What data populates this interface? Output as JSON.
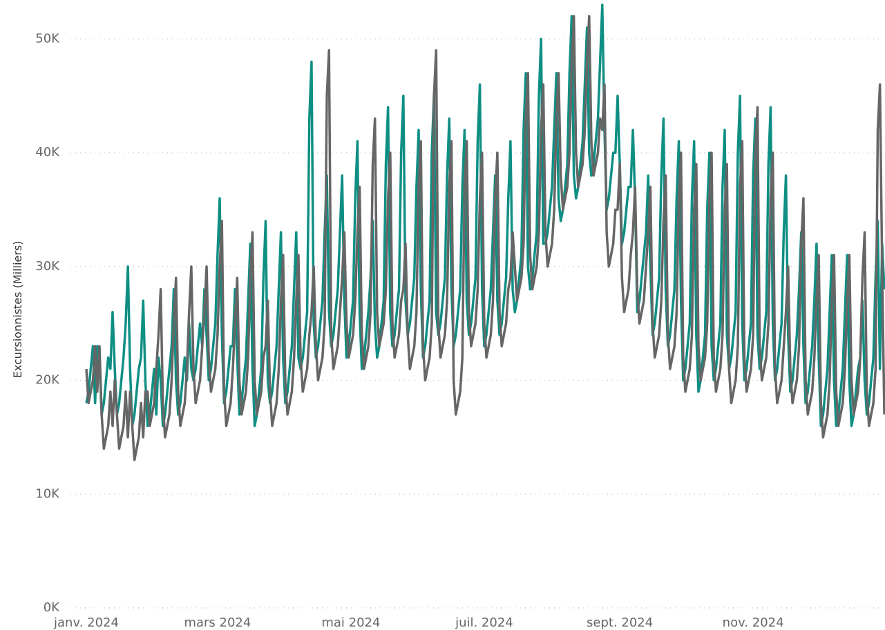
{
  "chart_data": {
    "type": "line",
    "y_label": "Excursionnistes (Milliers)",
    "xlim": [
      0,
      365
    ],
    "xticks": [
      {
        "value": 0,
        "label": "janv. 2024"
      },
      {
        "value": 60,
        "label": "mars 2024"
      },
      {
        "value": 121,
        "label": "mai 2024"
      },
      {
        "value": 182,
        "label": "juil. 2024"
      },
      {
        "value": 244,
        "label": "sept. 2024"
      },
      {
        "value": 305,
        "label": "nov. 2024"
      }
    ],
    "ylim": [
      0,
      53
    ],
    "yticks": [
      {
        "value": 0,
        "label": "0K"
      },
      {
        "value": 10,
        "label": "10K"
      },
      {
        "value": 20,
        "label": "20K"
      },
      {
        "value": 30,
        "label": "30K"
      },
      {
        "value": 40,
        "label": "40K"
      },
      {
        "value": 50,
        "label": "50K"
      }
    ],
    "grid": true,
    "series": [
      {
        "color": "#0f8f84",
        "values": [
          18,
          19,
          21,
          23,
          18,
          23,
          22,
          17,
          18,
          20,
          22,
          21,
          26,
          21,
          17,
          18,
          20,
          22,
          25,
          30,
          21,
          16,
          17,
          19,
          21,
          22,
          27,
          20,
          16,
          17,
          19,
          21,
          17,
          22,
          20,
          16,
          17,
          19,
          21,
          23,
          28,
          20,
          17,
          18,
          20,
          22,
          20,
          25,
          21,
          20,
          21,
          23,
          25,
          23,
          28,
          24,
          20,
          21,
          23,
          25,
          31,
          36,
          24,
          18,
          19,
          21,
          23,
          23,
          28,
          22,
          17,
          18,
          20,
          22,
          27,
          32,
          21,
          16,
          17,
          19,
          21,
          29,
          34,
          20,
          18,
          19,
          21,
          23,
          28,
          33,
          22,
          18,
          19,
          21,
          23,
          28,
          33,
          22,
          21,
          22,
          24,
          26,
          43,
          48,
          25,
          22,
          23,
          25,
          27,
          33,
          38,
          26,
          23,
          24,
          26,
          28,
          33,
          38,
          27,
          22,
          23,
          25,
          27,
          36,
          41,
          26,
          21,
          22,
          24,
          26,
          29,
          34,
          25,
          22,
          23,
          25,
          27,
          39,
          44,
          26,
          23,
          24,
          26,
          28,
          40,
          45,
          27,
          24,
          25,
          27,
          29,
          37,
          42,
          28,
          22,
          23,
          25,
          27,
          40,
          45,
          26,
          24,
          25,
          27,
          29,
          38,
          43,
          28,
          23,
          24,
          26,
          28,
          37,
          42,
          27,
          24,
          25,
          27,
          29,
          41,
          46,
          28,
          23,
          24,
          26,
          28,
          33,
          38,
          27,
          24,
          25,
          27,
          29,
          36,
          41,
          28,
          26,
          27,
          29,
          31,
          42,
          47,
          30,
          28,
          29,
          31,
          33,
          45,
          50,
          32,
          32,
          33,
          35,
          37,
          42,
          47,
          36,
          34,
          35,
          37,
          39,
          47,
          52,
          38,
          36,
          37,
          39,
          41,
          46,
          51,
          40,
          38,
          39,
          41,
          43,
          48,
          53,
          42,
          35,
          36,
          38,
          40,
          40,
          45,
          39,
          32,
          33,
          35,
          37,
          37,
          42,
          36,
          26,
          27,
          29,
          31,
          33,
          38,
          30,
          24,
          25,
          27,
          29,
          38,
          43,
          28,
          23,
          24,
          26,
          28,
          36,
          41,
          27,
          20,
          21,
          23,
          25,
          36,
          41,
          24,
          19,
          20,
          22,
          24,
          35,
          40,
          23,
          20,
          21,
          23,
          25,
          37,
          42,
          24,
          21,
          22,
          24,
          26,
          40,
          45,
          25,
          20,
          21,
          23,
          25,
          38,
          43,
          24,
          21,
          22,
          24,
          26,
          39,
          44,
          25,
          20,
          21,
          23,
          25,
          33,
          38,
          24,
          19,
          20,
          22,
          24,
          28,
          33,
          23,
          18,
          19,
          21,
          23,
          27,
          32,
          22,
          16,
          17,
          19,
          21,
          26,
          31,
          20,
          16,
          17,
          19,
          21,
          26,
          31,
          20,
          16,
          17,
          19,
          21,
          22,
          27,
          20,
          17,
          18,
          20,
          22,
          29,
          34,
          21,
          32,
          28
        ]
      },
      {
        "color": "#666666",
        "values": [
          21,
          18,
          19,
          20,
          23,
          19,
          23,
          17,
          14,
          15,
          16,
          19,
          16,
          20,
          17,
          14,
          15,
          16,
          19,
          15,
          19,
          16,
          13,
          14,
          15,
          18,
          15,
          19,
          19,
          16,
          17,
          18,
          21,
          24,
          28,
          18,
          15,
          16,
          17,
          20,
          25,
          29,
          19,
          16,
          17,
          18,
          21,
          26,
          30,
          21,
          18,
          19,
          20,
          23,
          26,
          30,
          22,
          19,
          20,
          21,
          24,
          30,
          34,
          19,
          16,
          17,
          18,
          21,
          25,
          29,
          20,
          17,
          18,
          19,
          22,
          29,
          33,
          20,
          17,
          18,
          19,
          22,
          23,
          27,
          19,
          16,
          17,
          18,
          21,
          27,
          31,
          20,
          17,
          18,
          19,
          22,
          27,
          31,
          22,
          19,
          20,
          21,
          24,
          26,
          30,
          23,
          20,
          21,
          22,
          25,
          45,
          49,
          24,
          21,
          22,
          23,
          26,
          29,
          33,
          25,
          22,
          23,
          24,
          27,
          33,
          37,
          24,
          21,
          22,
          23,
          26,
          39,
          43,
          26,
          23,
          24,
          25,
          28,
          36,
          40,
          25,
          22,
          23,
          24,
          27,
          28,
          32,
          24,
          21,
          22,
          23,
          26,
          37,
          41,
          23,
          20,
          21,
          22,
          25,
          45,
          49,
          25,
          22,
          23,
          24,
          27,
          37,
          41,
          20,
          17,
          18,
          19,
          22,
          37,
          41,
          26,
          23,
          24,
          25,
          28,
          36,
          40,
          25,
          22,
          23,
          24,
          27,
          36,
          40,
          26,
          23,
          24,
          25,
          28,
          29,
          33,
          30,
          27,
          28,
          29,
          32,
          43,
          47,
          31,
          28,
          29,
          30,
          33,
          42,
          46,
          33,
          30,
          31,
          32,
          35,
          43,
          47,
          38,
          35,
          36,
          37,
          40,
          48,
          52,
          40,
          37,
          38,
          39,
          42,
          48,
          52,
          41,
          38,
          39,
          40,
          43,
          42,
          46,
          33,
          30,
          31,
          32,
          35,
          35,
          39,
          29,
          26,
          27,
          28,
          31,
          33,
          37,
          28,
          25,
          26,
          27,
          30,
          33,
          37,
          25,
          22,
          23,
          24,
          27,
          34,
          38,
          24,
          21,
          22,
          23,
          26,
          36,
          40,
          22,
          19,
          20,
          21,
          24,
          35,
          39,
          23,
          20,
          21,
          22,
          25,
          36,
          40,
          22,
          19,
          20,
          21,
          24,
          35,
          39,
          21,
          18,
          19,
          20,
          23,
          37,
          41,
          22,
          19,
          20,
          21,
          24,
          40,
          44,
          23,
          20,
          21,
          22,
          25,
          36,
          40,
          21,
          18,
          19,
          20,
          23,
          26,
          30,
          21,
          18,
          19,
          20,
          23,
          32,
          36,
          20,
          17,
          18,
          19,
          22,
          27,
          31,
          18,
          15,
          16,
          17,
          20,
          27,
          31,
          19,
          16,
          17,
          18,
          21,
          27,
          31,
          20,
          17,
          18,
          19,
          22,
          29,
          33,
          19,
          16,
          17,
          18,
          21,
          42,
          46,
          30,
          17
        ]
      }
    ]
  }
}
